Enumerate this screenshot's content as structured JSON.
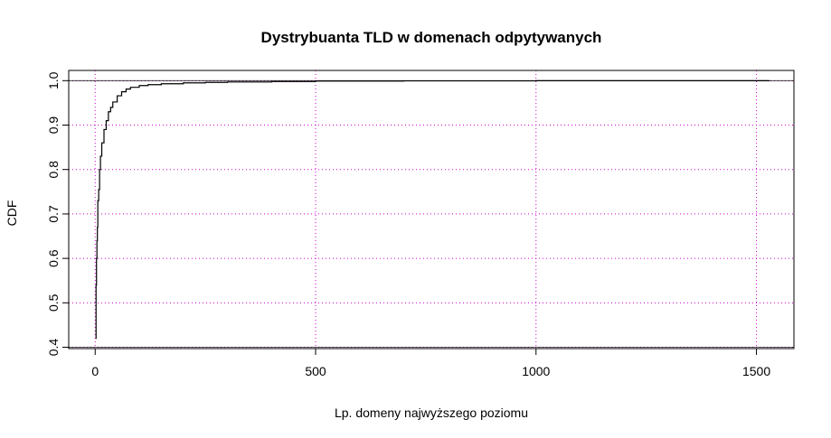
{
  "chart_data": {
    "type": "line",
    "title": "Dystrybuanta TLD w domenach odpytywanych",
    "xlabel": "Lp. domeny najwyższego poziomu",
    "ylabel": "CDF",
    "xlim": [
      -60,
      1585
    ],
    "ylim": [
      0.397,
      1.023
    ],
    "x_ticks": [
      0,
      500,
      1000,
      1500
    ],
    "x_tick_labels": [
      "0",
      "500",
      "1000",
      "1500"
    ],
    "y_ticks": [
      0.4,
      0.5,
      0.6,
      0.7,
      0.8,
      0.9,
      1.0
    ],
    "y_tick_labels": [
      "0.4",
      "0.5",
      "0.6",
      "0.7",
      "0.8",
      "0.9",
      "1.0"
    ],
    "grid": true,
    "grid_color": "#cc00cc",
    "line_color": "#000000",
    "hlines": [
      0.4,
      1.0
    ],
    "series": [
      {
        "x": [
          1,
          2,
          3,
          4,
          5,
          6,
          8,
          10,
          12,
          15,
          20,
          25,
          30,
          35,
          40,
          50,
          60,
          70,
          80,
          100,
          120,
          150,
          200,
          250,
          300,
          400,
          500,
          700,
          1000,
          1300,
          1529
        ],
        "y": [
          0.42,
          0.54,
          0.6,
          0.64,
          0.67,
          0.73,
          0.755,
          0.8,
          0.83,
          0.86,
          0.89,
          0.91,
          0.93,
          0.94,
          0.952,
          0.966,
          0.975,
          0.981,
          0.985,
          0.989,
          0.991,
          0.993,
          0.995,
          0.996,
          0.997,
          0.998,
          0.999,
          0.9995,
          0.9998,
          0.9999,
          1.0
        ]
      }
    ]
  }
}
